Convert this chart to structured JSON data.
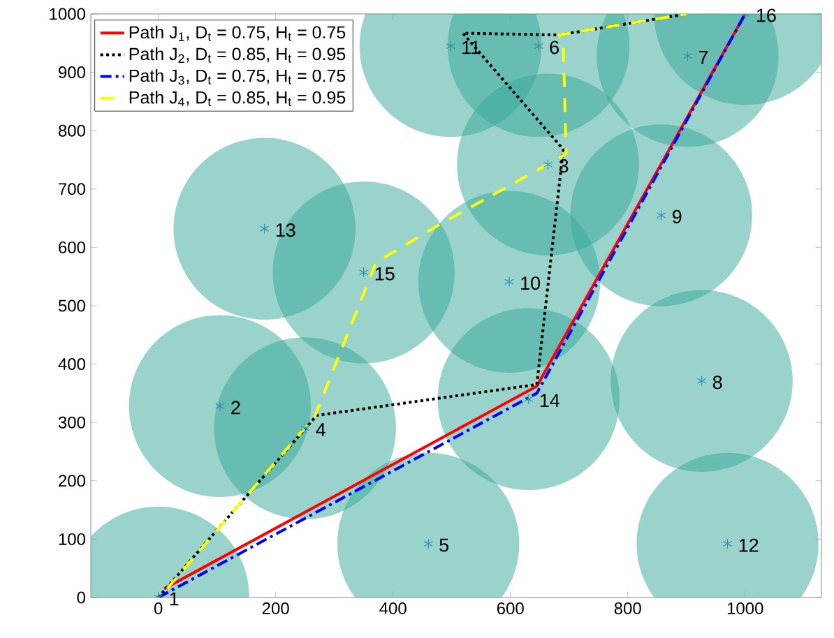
{
  "chart_data": {
    "type": "line",
    "xlim": [
      -115,
      1130
    ],
    "ylim": [
      0,
      1000
    ],
    "xticks": [
      0,
      200,
      400,
      600,
      800,
      1000
    ],
    "yticks": [
      0,
      100,
      200,
      300,
      400,
      500,
      600,
      700,
      800,
      900,
      1000
    ],
    "legend": "top left",
    "series": [
      {
        "type": "bubble",
        "color": "#35a799",
        "x": [
          0,
          105,
          664,
          250,
          460,
          648,
          902,
          926,
          857,
          598,
          498,
          970,
          181,
          631,
          350,
          1000
        ],
        "values": [
          0,
          328,
          742,
          290,
          92,
          945,
          928,
          371,
          655,
          541,
          945,
          92,
          632,
          340,
          557,
          1000
        ],
        "sizes": [
          1,
          1,
          1,
          1,
          1,
          1,
          1,
          1,
          1,
          1,
          1,
          1,
          1,
          1,
          1,
          1
        ]
      },
      {
        "type": "scatter",
        "marker": "cross",
        "color": "#2f8fb0",
        "x": [
          0,
          105,
          664,
          250,
          460,
          648,
          902,
          926,
          857,
          598,
          498,
          970,
          181,
          631,
          350,
          1000
        ],
        "values": [
          0,
          328,
          742,
          290,
          92,
          945,
          928,
          371,
          655,
          541,
          945,
          92,
          632,
          340,
          557,
          1000
        ]
      },
      {
        "name": "Path J$_{1}$, D$_{t}$ = 0.75, H$_{t}$ = 0.75",
        "color": "#ff0000",
        "line_style": "solid",
        "x": [
          10,
          645,
          1000
        ],
        "values": [
          15,
          362,
          1000
        ]
      },
      {
        "name": "Path J$_{2}$, D$_{t}$ = 0.85, H$_{t}$ = 0.95",
        "color": "#000000",
        "line_style": "dotted",
        "x": [
          0,
          270,
          645,
          690,
          519,
          683,
          900
        ],
        "values": [
          0,
          312,
          365,
          768,
          967,
          964,
          1000
        ]
      },
      {
        "name": "Path J$_{3}$, D$_{t}$ = 0.75, H$_{t}$ = 0.75",
        "color": "#0000ff",
        "line_style": "dashdot",
        "x": [
          0,
          645,
          1000
        ],
        "values": [
          0,
          350,
          1000
        ]
      },
      {
        "name": "Path J$_{4}$, D$_{t}$ = 0.85, H$_{t}$ = 0.95",
        "color": "#ffff00",
        "line_style": "dashed",
        "x": [
          15,
          267,
          371,
          474,
          695,
          690,
          683,
          900
        ],
        "values": [
          15,
          311,
          574,
          636,
          760,
          950,
          964,
          1000
        ]
      }
    ],
    "annotations": [
      {
        "text": "1",
        "x": 0,
        "y": 0
      },
      {
        "text": "2",
        "x": 105,
        "y": 328
      },
      {
        "text": "3",
        "x": 664,
        "y": 742
      },
      {
        "text": "4",
        "x": 250,
        "y": 290
      },
      {
        "text": "5",
        "x": 460,
        "y": 92
      },
      {
        "text": "6",
        "x": 648,
        "y": 945
      },
      {
        "text": "7",
        "x": 902,
        "y": 928
      },
      {
        "text": "8",
        "x": 926,
        "y": 371
      },
      {
        "text": "9",
        "x": 857,
        "y": 655
      },
      {
        "text": "10",
        "x": 598,
        "y": 541
      },
      {
        "text": "11",
        "x": 498,
        "y": 945
      },
      {
        "text": "12",
        "x": 970,
        "y": 92
      },
      {
        "text": "13",
        "x": 181,
        "y": 632
      },
      {
        "text": "14",
        "x": 631,
        "y": 340
      },
      {
        "text": "15",
        "x": 350,
        "y": 557
      },
      {
        "text": "16",
        "x": 1000,
        "y": 1000
      }
    ]
  }
}
